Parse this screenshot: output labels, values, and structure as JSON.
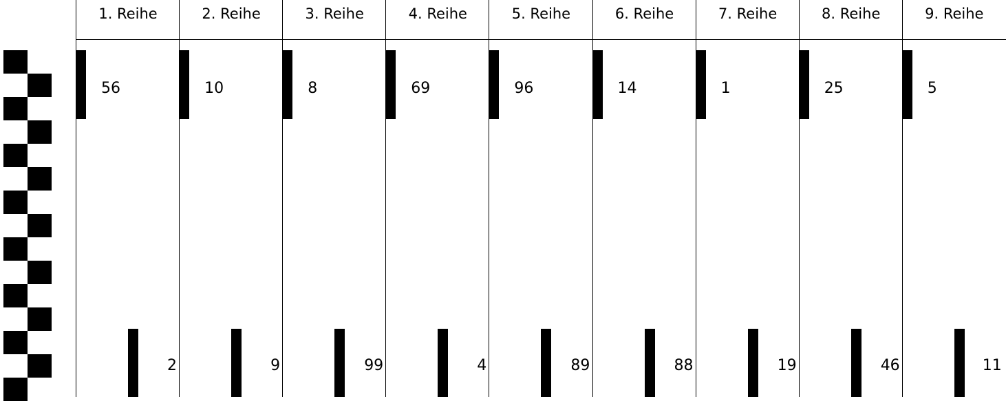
{
  "columns": [
    {
      "header": "1. Reihe",
      "top": "56",
      "bottom": "2"
    },
    {
      "header": "2. Reihe",
      "top": "10",
      "bottom": "9"
    },
    {
      "header": "3. Reihe",
      "top": "8",
      "bottom": "99"
    },
    {
      "header": "4. Reihe",
      "top": "69",
      "bottom": "4"
    },
    {
      "header": "5. Reihe",
      "top": "96",
      "bottom": "89"
    },
    {
      "header": "6. Reihe",
      "top": "14",
      "bottom": "88"
    },
    {
      "header": "7. Reihe",
      "top": "1",
      "bottom": "19"
    },
    {
      "header": "8. Reihe",
      "top": "25",
      "bottom": "46"
    },
    {
      "header": "9. Reihe",
      "top": "5",
      "bottom": "11"
    }
  ]
}
